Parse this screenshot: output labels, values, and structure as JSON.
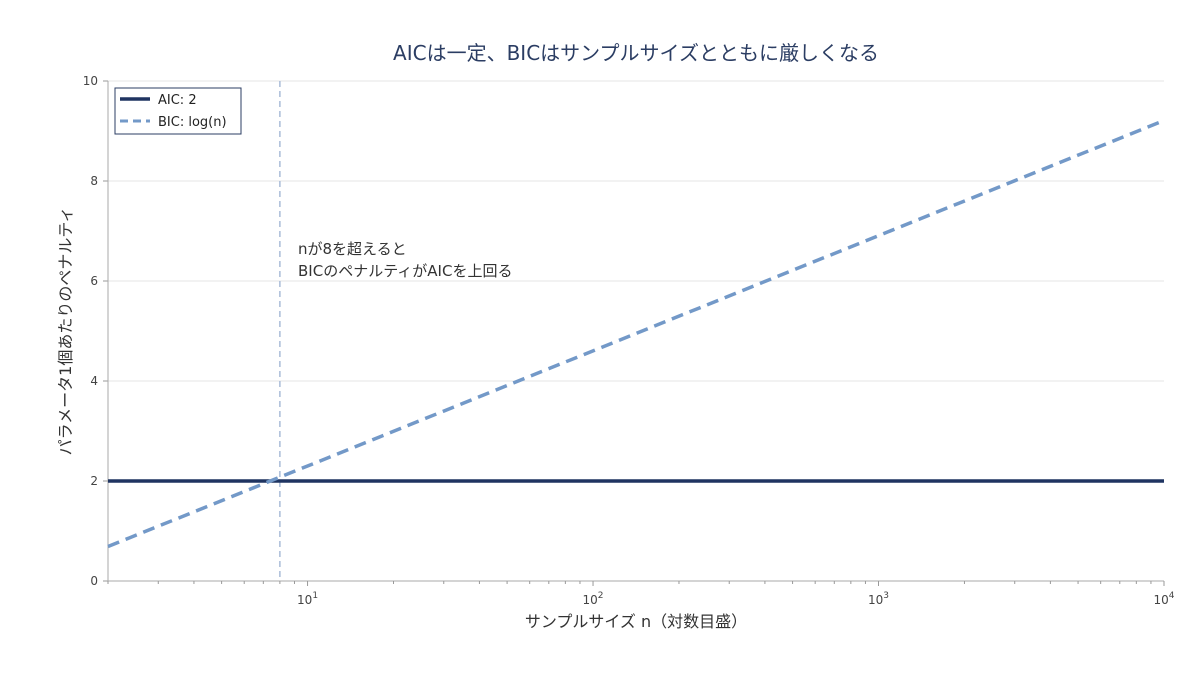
{
  "chart_data": {
    "type": "line",
    "title": "AICは一定、BICはサンプルサイズとともに厳しくなる",
    "xlabel": "サンプルサイズ n（対数目盛）",
    "ylabel": "パラメータ1個あたりのペナルティ",
    "xscale": "log",
    "xlim": [
      2,
      10000
    ],
    "ylim": [
      0,
      10
    ],
    "grid": "horizontal",
    "legend_position": "top-left",
    "x_ticks": [
      {
        "base": "10",
        "exp": "1",
        "value": 10
      },
      {
        "base": "10",
        "exp": "2",
        "value": 100
      },
      {
        "base": "10",
        "exp": "3",
        "value": 1000
      },
      {
        "base": "10",
        "exp": "4",
        "value": 10000
      }
    ],
    "y_ticks": [
      "0",
      "2",
      "4",
      "6",
      "8",
      "10"
    ],
    "series": [
      {
        "name": "AIC: 2",
        "style": "solid",
        "color": "#1f3461",
        "x": [
          2,
          10000
        ],
        "y": [
          2,
          2
        ]
      },
      {
        "name": "BIC: log(n)",
        "style": "dashed",
        "color": "#7399c8",
        "x": [
          2,
          10000
        ],
        "y": [
          0.69,
          9.21
        ]
      }
    ],
    "reference_line": {
      "x": 8,
      "color": "#a9bcd8",
      "style": "dashed"
    },
    "annotation": {
      "x": 9,
      "y": 6.2,
      "lines": [
        "nが8を超えると",
        "BICのペナルティがAICを上回る"
      ]
    }
  }
}
